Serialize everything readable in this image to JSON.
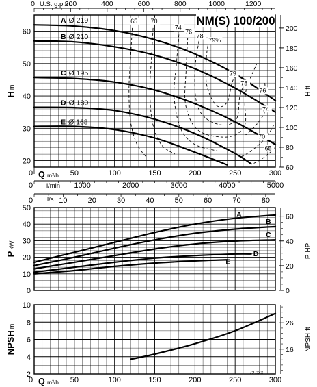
{
  "chart_data": [
    {
      "type": "line",
      "title": "NM(S) 100/200",
      "top_axis": {
        "label": "U.S. g.p.m.",
        "ticks": [
          "0",
          "200",
          "400",
          "600",
          "800",
          "1000",
          "1200"
        ]
      },
      "x": {
        "label": "Q",
        "unit": "m³/h",
        "range": [
          0,
          300
        ],
        "ticks": [
          "0",
          "50",
          "100",
          "150",
          "200",
          "250",
          "300"
        ]
      },
      "x_extra_axes": [
        {
          "label": "l/min",
          "ticks": [
            "0",
            "1000",
            "2000",
            "3000",
            "4000",
            "5000"
          ]
        },
        {
          "label": "l/s",
          "ticks": [
            "0",
            "10",
            "20",
            "30",
            "40",
            "50",
            "60",
            "70",
            "80"
          ]
        }
      ],
      "y": {
        "label": "H",
        "unit": "m",
        "range": [
          18,
          65
        ],
        "ticks": [
          "20",
          "30",
          "40",
          "50",
          "60"
        ]
      },
      "y_right": {
        "label": "H",
        "unit": "ft",
        "range": [
          60,
          213
        ],
        "ticks": [
          "60",
          "80",
          "100",
          "120",
          "140",
          "160",
          "180",
          "200"
        ]
      },
      "series": [
        {
          "name": "A",
          "diameter": "Ø 219",
          "x": [
            0,
            50,
            100,
            150,
            200,
            250,
            300
          ],
          "y": [
            62,
            61.6,
            60.2,
            57.4,
            53,
            46.8,
            38.6
          ]
        },
        {
          "name": "B",
          "diameter": "Ø 210",
          "x": [
            0,
            50,
            100,
            150,
            200,
            250,
            300
          ],
          "y": [
            57,
            56.7,
            55.2,
            52.6,
            48.4,
            42.4,
            35
          ]
        },
        {
          "name": "C",
          "diameter": "Ø 195",
          "x": [
            0,
            50,
            100,
            150,
            200,
            250,
            300
          ],
          "y": [
            45.7,
            45.4,
            44.3,
            41.8,
            37.6,
            32,
            25
          ]
        },
        {
          "name": "D",
          "diameter": "Ø 180",
          "x": [
            0,
            50,
            100,
            150,
            200,
            250,
            270
          ],
          "y": [
            36.5,
            36.4,
            35.5,
            32.8,
            28.4,
            22.2,
            19
          ]
        },
        {
          "name": "E",
          "diameter": "Ø 168",
          "x": [
            0,
            50,
            100,
            150,
            200,
            240
          ],
          "y": [
            30.6,
            30.6,
            29.6,
            27,
            22.6,
            18.7
          ]
        }
      ],
      "efficiency_labels": [
        "65",
        "70",
        "74",
        "76",
        "78",
        "79%",
        "79",
        "78",
        "76",
        "74",
        "70",
        "65"
      ]
    },
    {
      "type": "line",
      "x": {
        "label": "Q",
        "unit": "m³/h",
        "range": [
          0,
          300
        ]
      },
      "y": {
        "label": "P",
        "unit": "kW",
        "range": [
          0,
          50
        ],
        "ticks": [
          "0",
          "10",
          "20",
          "30",
          "40",
          "50"
        ]
      },
      "y_right": {
        "label": "P",
        "unit": "HP",
        "range": [
          0,
          67
        ],
        "ticks": [
          "0",
          "20",
          "40",
          "60"
        ]
      },
      "series": [
        {
          "name": "A",
          "x": [
            0,
            50,
            100,
            150,
            200,
            250,
            300
          ],
          "y": [
            17,
            23,
            29,
            35,
            40,
            43.5,
            45.5
          ]
        },
        {
          "name": "B",
          "x": [
            0,
            50,
            100,
            150,
            200,
            250,
            300
          ],
          "y": [
            15,
            20,
            25.5,
            30.5,
            34.5,
            37,
            38.5
          ]
        },
        {
          "name": "C",
          "x": [
            0,
            50,
            100,
            150,
            200,
            250,
            300
          ],
          "y": [
            13,
            17,
            21,
            25,
            28,
            29.8,
            30.5
          ]
        },
        {
          "name": "D",
          "x": [
            0,
            50,
            100,
            150,
            200,
            250,
            270
          ],
          "y": [
            11,
            14,
            17,
            19.5,
            21,
            22,
            22
          ]
        },
        {
          "name": "E",
          "x": [
            0,
            50,
            100,
            150,
            200,
            240
          ],
          "y": [
            10,
            12,
            14.5,
            16.5,
            17.8,
            18.5
          ]
        }
      ]
    },
    {
      "type": "line",
      "x": {
        "label": "Q",
        "unit": "m³/h",
        "range": [
          0,
          300
        ],
        "ticks": [
          "0",
          "50",
          "100",
          "150",
          "200",
          "250",
          "300"
        ]
      },
      "y": {
        "label": "NPSH",
        "unit": "m",
        "range": [
          2,
          10
        ],
        "ticks": [
          "2",
          "4",
          "6",
          "8",
          "10"
        ]
      },
      "y_right": {
        "label": "NPSH",
        "unit": "ft",
        "range": [
          6.6,
          32.8
        ],
        "ticks": [
          "6",
          "16",
          "26"
        ]
      },
      "series": [
        {
          "name": "NPSH",
          "x": [
            120,
            150,
            200,
            250,
            300
          ],
          "y": [
            3.7,
            4.3,
            5.5,
            7,
            9
          ]
        }
      ],
      "footnote": "72.033"
    }
  ]
}
